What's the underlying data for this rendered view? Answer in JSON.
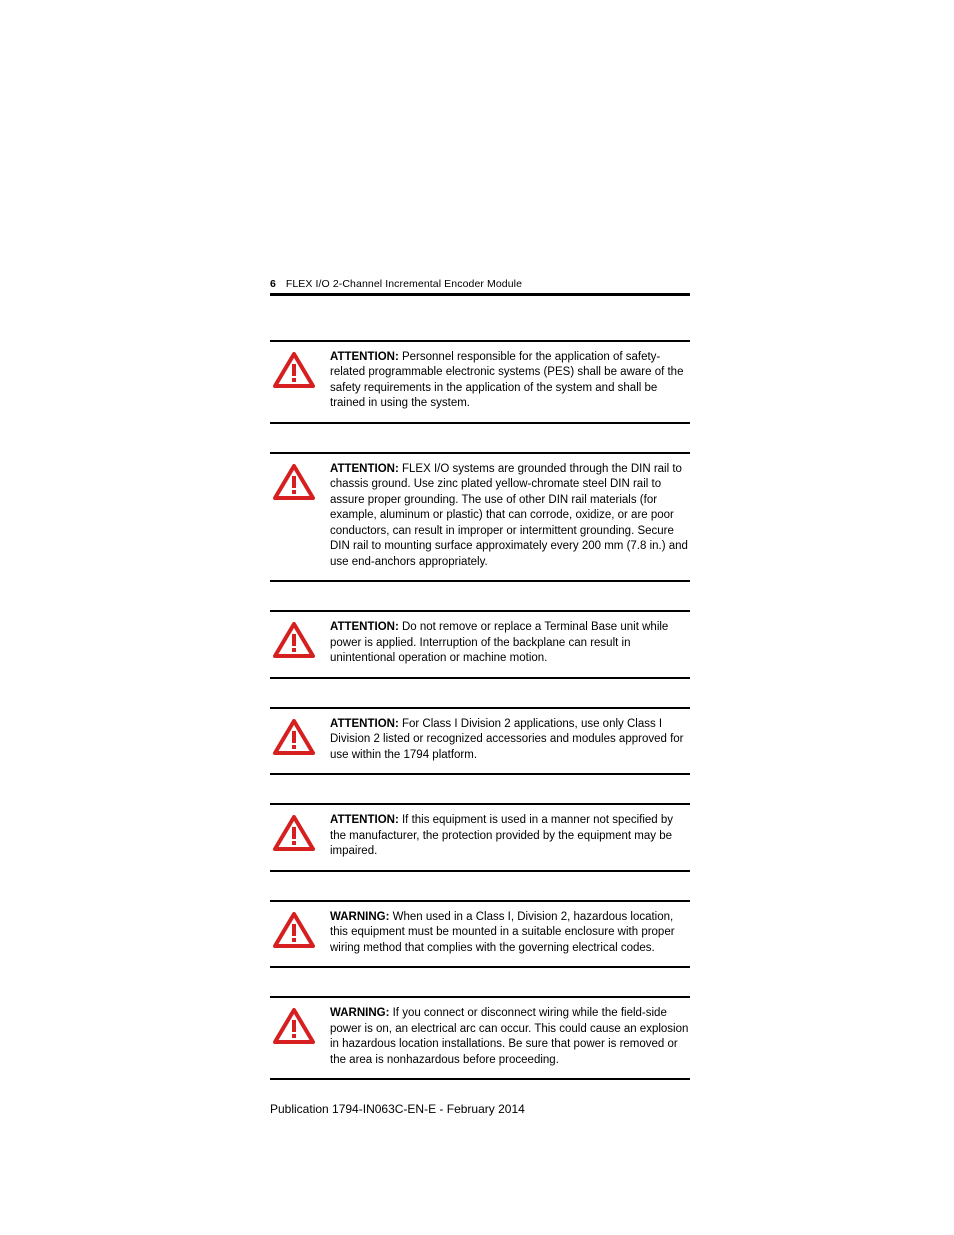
{
  "page": {
    "number": "6",
    "header_title": "FLEX I/O 2-Channel Incremental Encoder Module"
  },
  "icon_colors": {
    "stroke": "#d62020",
    "bang": "#d62020"
  },
  "notices": [
    {
      "label": "ATTENTION:",
      "text": "Personnel responsible for the application of safety-related programmable electronic systems (PES) shall be aware of the safety requirements in the application of the system and shall be trained in using the system."
    },
    {
      "label": "ATTENTION:",
      "text": "FLEX I/O systems are grounded through the DIN rail to chassis ground. Use zinc plated yellow-chromate steel DIN rail to assure proper grounding. The use of other DIN rail materials (for example, aluminum or plastic) that can corrode, oxidize, or are poor conductors, can result in improper or intermittent grounding. Secure DIN rail to mounting surface approximately every 200 mm (7.8 in.) and use end-anchors appropriately."
    },
    {
      "label": "ATTENTION:",
      "text": "Do not remove or replace a Terminal Base unit while power is applied. Interruption of the backplane can result in unintentional operation or machine motion."
    },
    {
      "label": "ATTENTION:",
      "text": "For Class I Division 2 applications, use only Class I Division 2 listed or recognized accessories and modules approved for use within the 1794 platform."
    },
    {
      "label": "ATTENTION:",
      "text": "If this equipment is used in a manner not specified by the manufacturer, the protection provided by the equipment may be impaired."
    },
    {
      "label": "WARNING:",
      "text": "When used in a Class I, Division 2, hazardous location, this equipment must be mounted in a suitable enclosure with proper wiring method that complies with the governing electrical codes."
    },
    {
      "label": "WARNING:",
      "text": "If you connect or disconnect wiring while the field-side power is on, an electrical arc can occur. This could cause an explosion in hazardous location installations. Be sure that power is removed or the area is nonhazardous before proceeding."
    }
  ],
  "publication": "Publication 1794-IN063C-EN-E - February 2014"
}
